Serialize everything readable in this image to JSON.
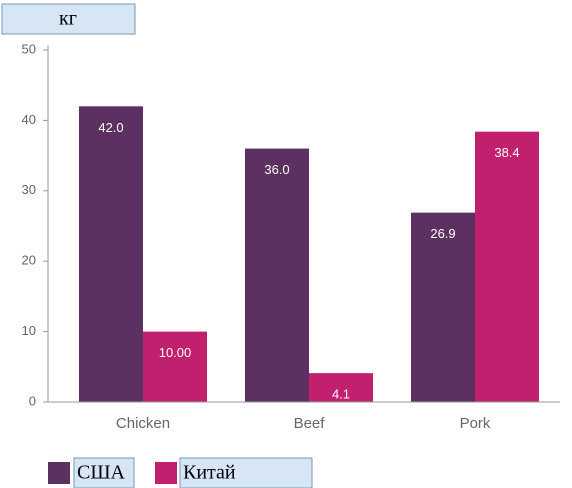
{
  "chart_data": {
    "type": "bar",
    "title": "кг",
    "categories": [
      "Chicken",
      "Beef",
      "Pork"
    ],
    "series": [
      {
        "name": "США",
        "color": "#5c3060",
        "values": [
          42,
          36,
          26.9
        ],
        "value_labels": [
          "42.0",
          "36.0",
          "26.9"
        ]
      },
      {
        "name": "Китай",
        "color": "#c0206e",
        "values": [
          10,
          4.1,
          38.4
        ],
        "value_labels": [
          "10.00",
          "4.1",
          "38.4"
        ]
      }
    ],
    "ylim": [
      0,
      50
    ],
    "yticks": [
      0,
      10,
      20,
      30,
      40,
      50
    ],
    "grid": false
  }
}
